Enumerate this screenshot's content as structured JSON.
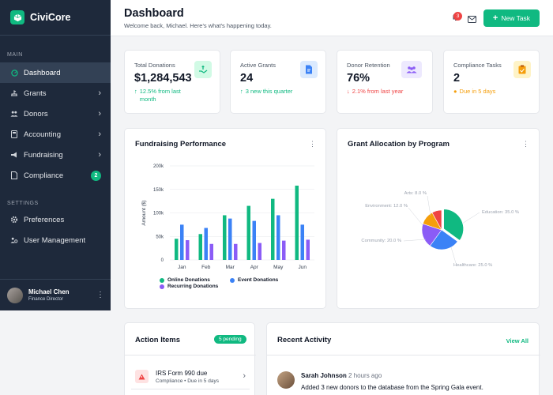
{
  "brand": {
    "name": "CiviCore"
  },
  "sidebar": {
    "main_label": "MAIN",
    "settings_label": "SETTINGS",
    "items": [
      {
        "label": "Dashboard",
        "icon": "dashboard-icon"
      },
      {
        "label": "Grants",
        "icon": "grants-icon"
      },
      {
        "label": "Donors",
        "icon": "donors-icon"
      },
      {
        "label": "Accounting",
        "icon": "accounting-icon"
      },
      {
        "label": "Fundraising",
        "icon": "megaphone-icon"
      },
      {
        "label": "Compliance",
        "icon": "compliance-icon",
        "badge": "2"
      }
    ],
    "settings_items": [
      {
        "label": "Preferences",
        "icon": "gear-icon"
      },
      {
        "label": "User Management",
        "icon": "users-gear-icon"
      }
    ]
  },
  "user": {
    "name": "Michael Chen",
    "role": "Finance Director"
  },
  "header": {
    "title": "Dashboard",
    "subtitle": "Welcome back, Michael. Here's what's happening today.",
    "notification_count": "3",
    "new_task_label": "New Task"
  },
  "stats": [
    {
      "label": "Total Donations",
      "value": "$1,284,543",
      "delta": "12.5% from last month",
      "trend": "up",
      "icon": "hand-money-icon",
      "icon_bg": "#d1fae5",
      "icon_color": "#10b981"
    },
    {
      "label": "Active Grants",
      "value": "24",
      "delta": "3 new this quarter",
      "trend": "up",
      "icon": "document-icon",
      "icon_bg": "#dbeafe",
      "icon_color": "#3b82f6"
    },
    {
      "label": "Donor Retention",
      "value": "76%",
      "delta": "2.1% from last year",
      "trend": "down",
      "icon": "people-icon",
      "icon_bg": "#ede9fe",
      "icon_color": "#8b5cf6"
    },
    {
      "label": "Compliance Tasks",
      "value": "2",
      "delta": "Due in 5 days",
      "trend": "warn",
      "icon": "clipboard-icon",
      "icon_bg": "#fef3c7",
      "icon_color": "#f59e0b"
    }
  ],
  "colors": {
    "green": "#10b981",
    "blue": "#3b82f6",
    "purple": "#8b5cf6",
    "red": "#ef4444",
    "amber": "#f59e0b"
  },
  "fundraising": {
    "title": "Fundraising Performance",
    "chart_data": {
      "type": "bar",
      "categories": [
        "Jan",
        "Feb",
        "Mar",
        "Apr",
        "May",
        "Jun"
      ],
      "ylabel": "Amount ($)",
      "ylim": [
        0,
        200000
      ],
      "yticks": [
        "0",
        "50k",
        "100k",
        "150k",
        "200k"
      ],
      "series": [
        {
          "name": "Online Donations",
          "color": "#10b981",
          "values": [
            45000,
            55000,
            95000,
            115000,
            130000,
            158000
          ]
        },
        {
          "name": "Event Donations",
          "color": "#3b82f6",
          "values": [
            75000,
            68000,
            88000,
            83000,
            95000,
            75000
          ]
        },
        {
          "name": "Recurring Donations",
          "color": "#8b5cf6",
          "values": [
            42000,
            34000,
            34000,
            36000,
            41000,
            43000
          ]
        }
      ]
    }
  },
  "allocation": {
    "title": "Grant Allocation by Program",
    "chart_data": {
      "type": "pie",
      "slices": [
        {
          "label": "Education: 35.0 %",
          "value": 35,
          "color": "#10b981"
        },
        {
          "label": "Healthcare: 25.0 %",
          "value": 25,
          "color": "#3b82f6"
        },
        {
          "label": "Community: 20.0 %",
          "value": 20,
          "color": "#8b5cf6"
        },
        {
          "label": "Environment: 12.0 %",
          "value": 12,
          "color": "#f59e0b"
        },
        {
          "label": "Arts: 8.0 %",
          "value": 8,
          "color": "#ef4444"
        }
      ]
    }
  },
  "actions": {
    "title": "Action Items",
    "badge": "5 pending",
    "items": [
      {
        "title": "IRS Form 990 due",
        "meta": "Compliance • Due in 5 days"
      }
    ]
  },
  "activity": {
    "title": "Recent Activity",
    "view_all": "View All",
    "items": [
      {
        "name": "Sarah Johnson",
        "time": "• 2 hours ago",
        "text": "Added 3 new donors to the database from the Spring Gala event."
      }
    ]
  }
}
